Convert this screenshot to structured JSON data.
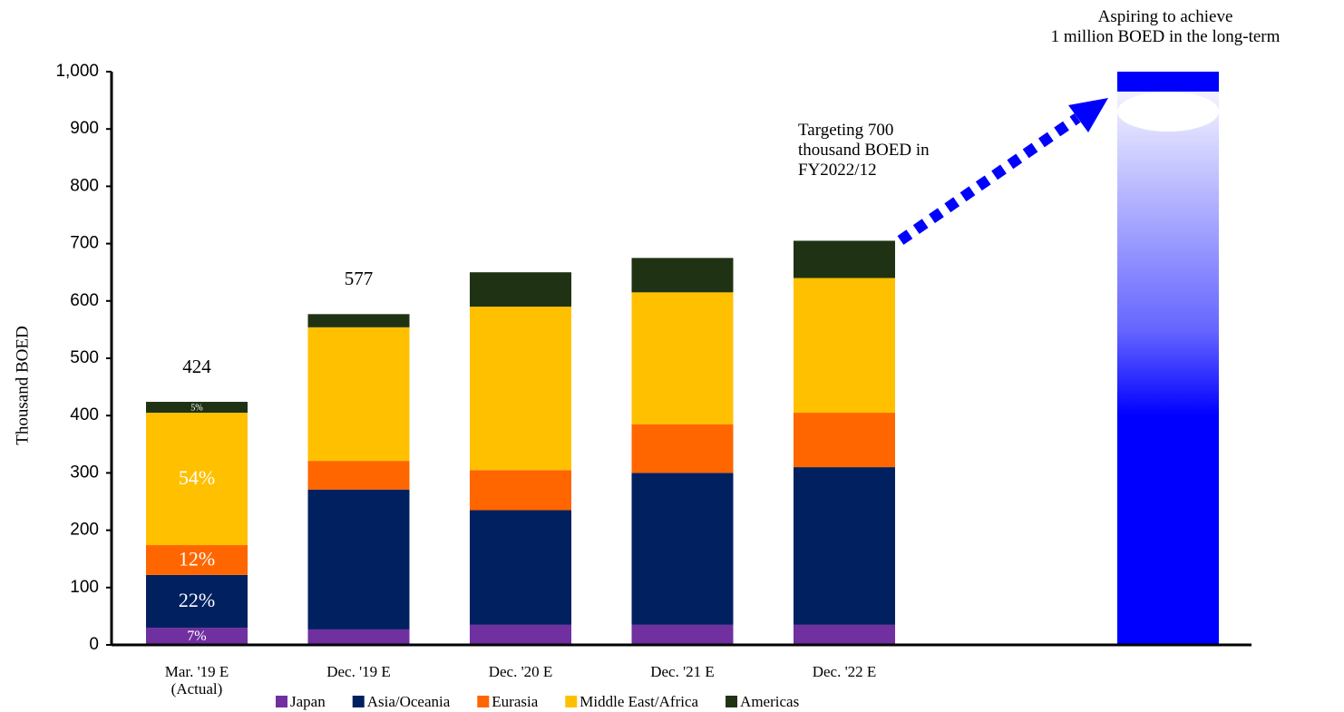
{
  "chart_data": {
    "type": "stacked_bar",
    "y_label": "Thousand BOED",
    "categories": [
      "Mar. '19 E\n(Actual)",
      "Dec. '19 E",
      "Dec. '20 E",
      "Dec. '21 E",
      "Dec. '22 E",
      null
    ],
    "series": [
      {
        "name": "Japan",
        "color": "#7030a0",
        "values": [
          30,
          27,
          35,
          35,
          35,
          null
        ],
        "share_labels": [
          "7%",
          null,
          null,
          null,
          null,
          null
        ]
      },
      {
        "name": "Asia/Oceania",
        "color": "#002060",
        "values": [
          92,
          244,
          200,
          265,
          275,
          null
        ],
        "share_labels": [
          "22%",
          null,
          null,
          null,
          null,
          null
        ]
      },
      {
        "name": "Eurasia",
        "color": "#ff6600",
        "values": [
          52,
          50,
          70,
          85,
          95,
          null
        ],
        "share_labels": [
          "12%",
          null,
          null,
          null,
          null,
          null
        ]
      },
      {
        "name": "Middle East/Africa",
        "color": "#ffc000",
        "values": [
          231,
          233,
          285,
          230,
          235,
          null
        ],
        "share_labels": [
          "54%",
          null,
          null,
          null,
          null,
          null
        ]
      },
      {
        "name": "Americas",
        "color": "#1f3314",
        "values": [
          19,
          23,
          60,
          60,
          65,
          null
        ],
        "share_labels": [
          "5%",
          null,
          null,
          null,
          null,
          null
        ]
      }
    ],
    "target": {
      "color": "#0000ff",
      "values": [
        null,
        null,
        null,
        null,
        null,
        1000
      ]
    },
    "total_labels": [
      424,
      577,
      null,
      null,
      null,
      null
    ],
    "ylim": [
      0,
      1000
    ],
    "yticks": [
      0,
      100,
      200,
      300,
      400,
      500,
      600,
      700,
      800,
      900,
      {
        "value": 1000,
        "label": "1,000"
      }
    ],
    "annotations": [
      "Targeting 700\nthousand BOED in\nFY2022/12",
      "Aspiring to achieve\n1 million BOED in the long-term"
    ],
    "arrow_color": "#0000ff"
  }
}
